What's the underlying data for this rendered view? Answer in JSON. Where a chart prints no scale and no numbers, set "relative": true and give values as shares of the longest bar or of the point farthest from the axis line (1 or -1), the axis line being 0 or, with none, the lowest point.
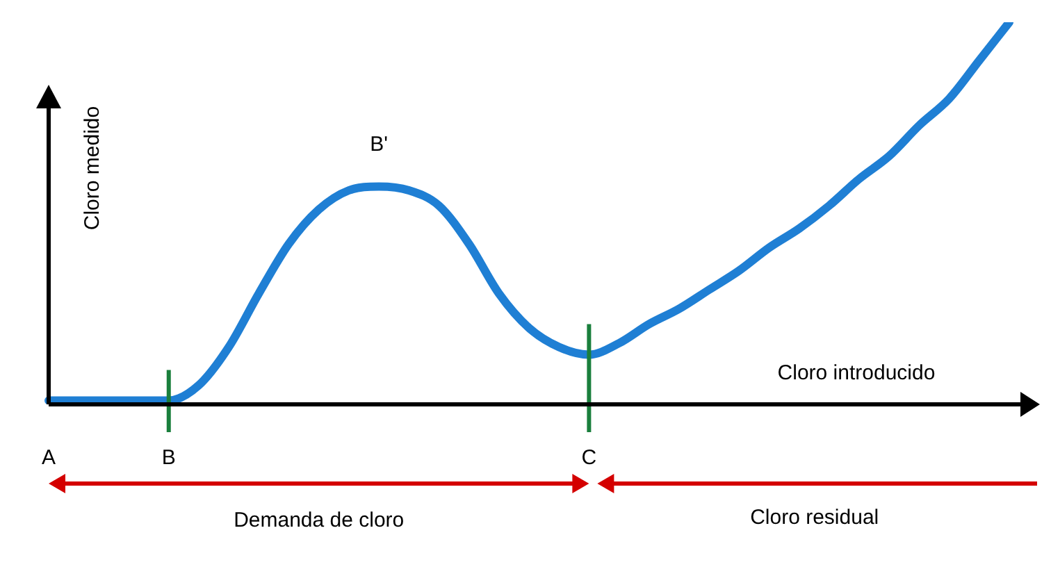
{
  "chart_data": {
    "type": "line",
    "relative": true,
    "xlabel": "Cloro introducido",
    "ylabel": "Cloro medido",
    "categories": [
      "A",
      null,
      null,
      null,
      "B",
      null,
      null,
      null,
      null,
      null,
      null,
      null,
      null,
      null,
      null,
      null,
      null,
      null,
      "C",
      null,
      null,
      null,
      null,
      null,
      null,
      null,
      null,
      null,
      null,
      null,
      null,
      null,
      null
    ],
    "series": [
      {
        "color": "#1f7fd4",
        "values": [
          0.01,
          0.01,
          0.01,
          0.01,
          0.01,
          0.05,
          0.15,
          0.29,
          0.42,
          0.51,
          0.56,
          0.57,
          0.56,
          0.52,
          0.42,
          0.29,
          0.2,
          0.15,
          0.13,
          0.16,
          0.21,
          0.25,
          0.3,
          0.35,
          0.41,
          0.46,
          0.52,
          0.59,
          0.65,
          0.73,
          0.8,
          0.9,
          1.0
        ]
      }
    ],
    "ref_lines": [
      {
        "axis": "x",
        "value": "B",
        "color": "#1a7f3c"
      },
      {
        "axis": "x",
        "value": "C",
        "color": "#1a7f3c"
      }
    ],
    "annotations": [
      "B'",
      "Demanda de cloro",
      "Cloro residual"
    ]
  }
}
